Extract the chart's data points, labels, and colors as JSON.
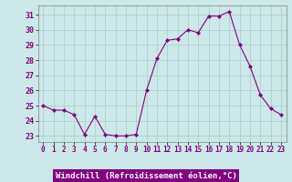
{
  "x": [
    0,
    1,
    2,
    3,
    4,
    5,
    6,
    7,
    8,
    9,
    10,
    11,
    12,
    13,
    14,
    15,
    16,
    17,
    18,
    19,
    20,
    21,
    22,
    23
  ],
  "y": [
    25.0,
    24.7,
    24.7,
    24.4,
    23.1,
    24.3,
    23.1,
    23.0,
    23.0,
    23.1,
    26.0,
    28.1,
    29.3,
    29.4,
    30.0,
    29.8,
    30.9,
    30.9,
    31.2,
    29.0,
    27.6,
    25.7,
    24.8,
    24.4
  ],
  "line_color": "#800080",
  "marker": "D",
  "marker_size": 2,
  "bg_color": "#cce8e8",
  "grid_color": "#aacccc",
  "xlabel": "Windchill (Refroidissement éolien,°C)",
  "xlabel_bg": "#800080",
  "xlabel_color": "#ffffff",
  "yticks": [
    23,
    24,
    25,
    26,
    27,
    28,
    29,
    30,
    31
  ],
  "xticks": [
    0,
    1,
    2,
    3,
    4,
    5,
    6,
    7,
    8,
    9,
    10,
    11,
    12,
    13,
    14,
    15,
    16,
    17,
    18,
    19,
    20,
    21,
    22,
    23
  ],
  "ylim": [
    22.6,
    31.6
  ],
  "xlim": [
    -0.5,
    23.5
  ],
  "tick_fontsize": 5.5,
  "xlabel_fontsize": 6.5,
  "ytick_fontsize": 6.0
}
